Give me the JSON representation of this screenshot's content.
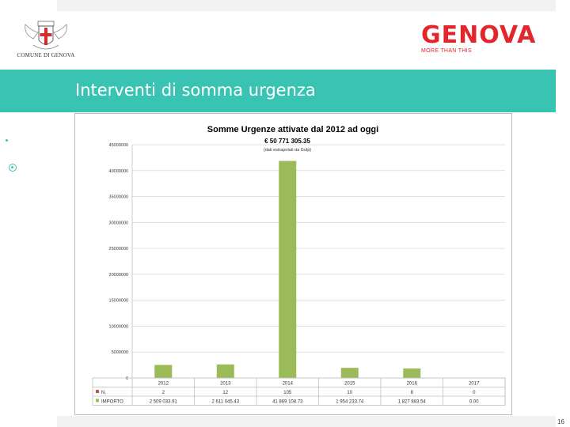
{
  "header": {
    "comune_name": "COMUNE DI GENOVA",
    "brand_name": "GENOVA",
    "brand_tagline": "MORE THAN THIS",
    "slide_title": "Interventi di somma urgenza",
    "page_number": "16"
  },
  "colors": {
    "header_band": "#39c3b3",
    "brand_red": "#e3262c",
    "bar_green": "#9bbb59",
    "series_n_red": "#c0504d"
  },
  "chart_data": {
    "type": "bar",
    "title": "Somme Urgenze attivate dal 2012 ad oggi",
    "total_label": "€ 50 771 305.35",
    "total_note": "(dati estrapolati da Gulp)",
    "categories": [
      "2012",
      "2013",
      "2014",
      "2015",
      "2016",
      "2017"
    ],
    "ylim": [
      0,
      45000000
    ],
    "yticks": [
      0,
      5000000,
      10000000,
      15000000,
      20000000,
      25000000,
      30000000,
      35000000,
      40000000,
      45000000
    ],
    "grid": true,
    "series": [
      {
        "name": "N.",
        "values": [
          2,
          12,
          105,
          10,
          8,
          0
        ],
        "display": [
          "2",
          "12",
          "105",
          "10",
          "8",
          "0"
        ],
        "color": "#c0504d"
      },
      {
        "name": "IMPORTO",
        "values": [
          2509033.91,
          2611045.43,
          41869108.73,
          1954233.74,
          1827883.54,
          0
        ],
        "display": [
          "2 509 033.91",
          "2 611 045.43",
          "41 869 108.73",
          "1 954 233.74",
          "1 827 883.54",
          "0.00"
        ],
        "color": "#9bbb59"
      }
    ]
  }
}
